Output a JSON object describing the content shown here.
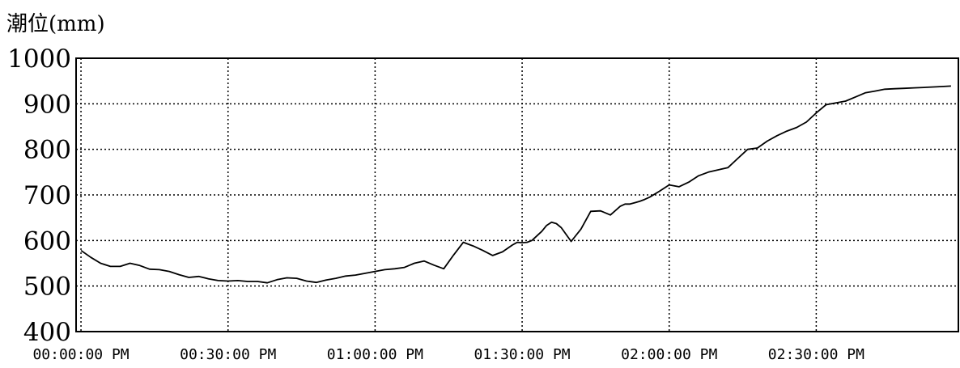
{
  "chart_data": {
    "type": "line",
    "ylabel": "潮位(mm)",
    "xlabel": "",
    "ylim": [
      400,
      1000
    ],
    "yticks": [
      1000,
      900,
      800,
      700,
      600,
      500,
      400
    ],
    "ytick_labels": [
      "1000",
      "900",
      "800",
      "700",
      "600",
      "500",
      "400"
    ],
    "xlim_minutes": [
      -1,
      179
    ],
    "xticks_minutes": [
      0,
      30,
      60,
      90,
      120,
      150
    ],
    "xtick_labels": [
      "00:00:00 PM",
      "00:30:00 PM",
      "01:00:00 PM",
      "01:30:00 PM",
      "02:00:00 PM",
      "02:30:00 PM"
    ],
    "grid": true,
    "grid_style": "dotted",
    "series": [
      {
        "color": "#000000",
        "x": [
          0,
          2,
          4,
          6,
          8,
          10,
          12,
          14,
          16,
          18,
          20,
          22,
          24,
          26,
          28,
          30,
          32,
          34,
          36,
          38,
          40,
          42,
          44,
          46,
          48,
          50,
          52,
          54,
          56,
          58,
          60,
          62,
          64,
          66,
          68,
          70,
          72,
          74,
          76,
          78,
          80,
          82,
          84,
          86,
          88,
          89,
          90,
          91,
          92,
          93,
          94,
          95,
          96,
          97,
          98,
          100,
          102,
          104,
          106,
          108,
          110,
          111,
          112,
          113,
          114,
          115,
          116,
          118,
          120,
          122,
          124,
          126,
          128,
          130,
          132,
          134,
          136,
          138,
          140,
          142,
          144,
          146,
          148,
          150,
          152,
          154,
          156,
          158,
          160,
          162,
          164,
          166,
          168,
          170,
          172,
          174,
          176,
          177.5
        ],
        "y": [
          578,
          563,
          550,
          543,
          543,
          550,
          545,
          537,
          536,
          532,
          525,
          519,
          521,
          516,
          512,
          511,
          512,
          510,
          510,
          507,
          514,
          518,
          517,
          511,
          508,
          513,
          517,
          522,
          524,
          528,
          532,
          536,
          538,
          541,
          550,
          555,
          546,
          538,
          568,
          596,
          588,
          578,
          567,
          575,
          590,
          596,
          595,
          596,
          600,
          610,
          620,
          633,
          640,
          637,
          628,
          598,
          625,
          664,
          665,
          656,
          675,
          680,
          680,
          683,
          686,
          690,
          695,
          708,
          722,
          718,
          728,
          742,
          750,
          755,
          760,
          780,
          800,
          803,
          818,
          830,
          840,
          848,
          860,
          880,
          898,
          902,
          906,
          915,
          924,
          928,
          932,
          933,
          934,
          935,
          936,
          937,
          938,
          939
        ]
      }
    ]
  }
}
